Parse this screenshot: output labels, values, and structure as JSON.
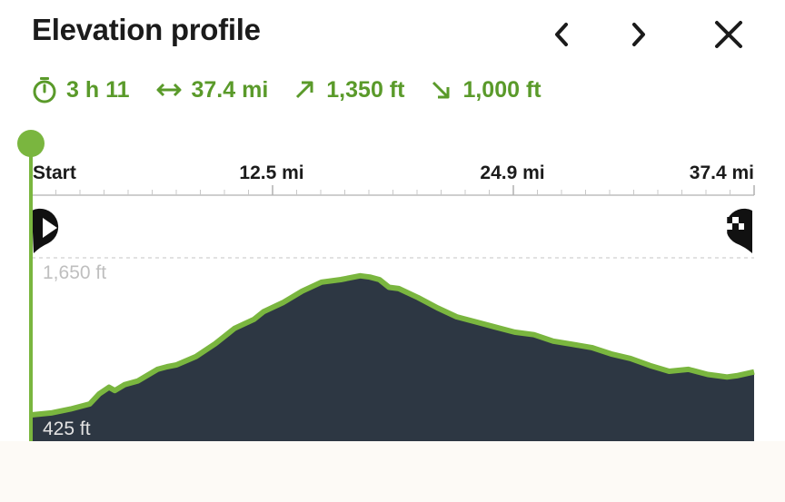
{
  "header": {
    "title": "Elevation profile"
  },
  "stats": {
    "duration": "3 h 11",
    "distance": "37.4 mi",
    "ascent": "1,350 ft",
    "descent": "1,000 ft"
  },
  "colors": {
    "accent": "#5a9a2a",
    "line": "#7ab63f",
    "fill": "#2d3743"
  },
  "chart_data": {
    "type": "area",
    "x_unit": "mi",
    "y_unit": "ft",
    "x_ticks": [
      "Start",
      "12.5 mi",
      "24.9 mi",
      "37.4 mi"
    ],
    "y_ticks": [
      "1,650 ft",
      "425 ft"
    ],
    "xlim": [
      0,
      37.4
    ],
    "ylim": [
      425,
      1650
    ],
    "start_label": "start",
    "finish_label": "finish",
    "x": [
      0,
      1,
      2,
      3,
      3.5,
      4,
      4.3,
      4.8,
      5.5,
      6.5,
      7,
      7.5,
      8.5,
      9.5,
      10.5,
      11.5,
      12,
      13,
      14,
      15,
      16,
      17,
      17.5,
      18,
      18.5,
      19,
      20,
      21,
      22,
      23,
      24,
      25,
      26,
      27,
      28,
      29,
      30,
      31,
      32,
      33,
      34,
      35,
      35.5,
      36,
      36.5,
      37.4
    ],
    "y": [
      425,
      440,
      470,
      510,
      590,
      640,
      615,
      660,
      690,
      780,
      800,
      815,
      880,
      980,
      1100,
      1170,
      1230,
      1300,
      1390,
      1460,
      1480,
      1510,
      1500,
      1480,
      1420,
      1410,
      1340,
      1260,
      1190,
      1150,
      1110,
      1070,
      1050,
      1000,
      975,
      950,
      900,
      865,
      810,
      765,
      780,
      740,
      730,
      720,
      730,
      760
    ]
  }
}
